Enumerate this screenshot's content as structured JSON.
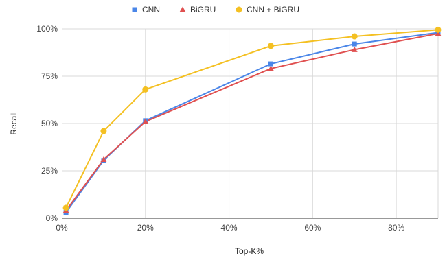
{
  "chart_data": {
    "type": "line",
    "title": "",
    "xlabel": "Top-K%",
    "ylabel": "Recall",
    "xlim": [
      0,
      90
    ],
    "ylim": [
      0,
      100
    ],
    "x_ticks": [
      0,
      20,
      40,
      60,
      80
    ],
    "x_tick_labels": [
      "0%",
      "20%",
      "40%",
      "60%",
      "80%"
    ],
    "y_ticks": [
      0,
      25,
      50,
      75,
      100
    ],
    "y_tick_labels": [
      "0%",
      "25%",
      "50%",
      "75%",
      "100%"
    ],
    "grid": true,
    "legend": "top",
    "x": [
      1,
      10,
      20,
      50,
      70,
      90
    ],
    "series": [
      {
        "name": "CNN",
        "marker": "square",
        "color": "#4a86e8",
        "values": [
          3,
          30.5,
          51.5,
          81.5,
          92,
          98
        ]
      },
      {
        "name": "BiGRU",
        "marker": "triangle",
        "color": "#e05050",
        "values": [
          4,
          31,
          51,
          79,
          89,
          97.5
        ]
      },
      {
        "name": "CNN + BiGRU",
        "marker": "circle",
        "color": "#f4c022",
        "values": [
          5.5,
          46,
          68,
          91,
          96,
          99.5
        ]
      }
    ]
  }
}
